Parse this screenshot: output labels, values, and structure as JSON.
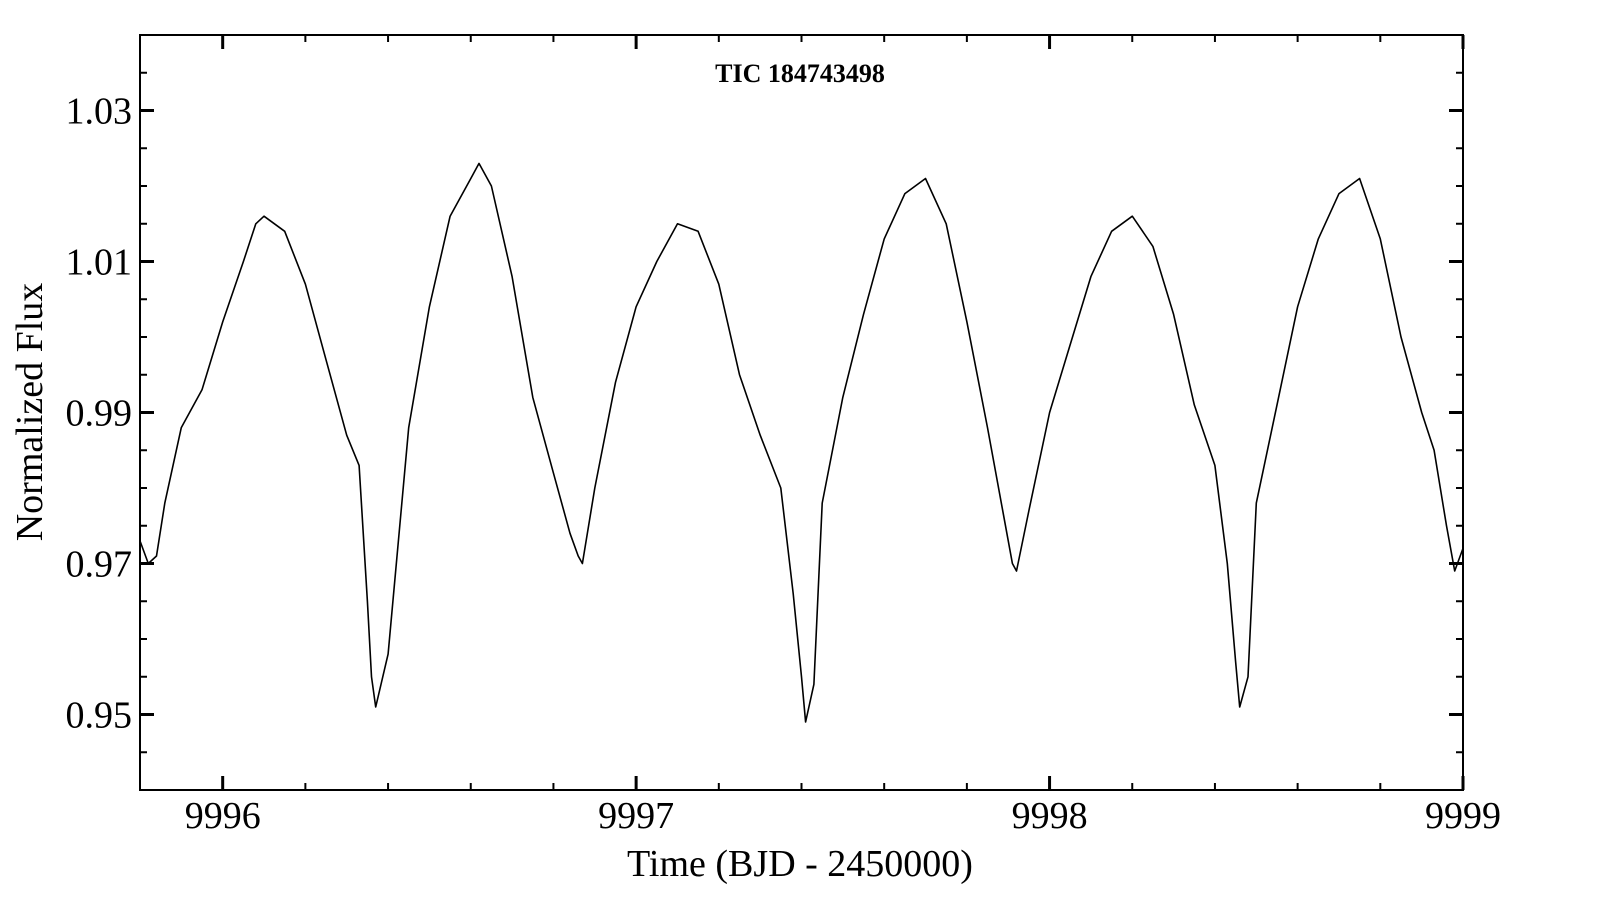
{
  "chart_data": {
    "type": "line",
    "title": "TIC 184743498",
    "xlabel": "Time (BJD - 2450000)",
    "ylabel": "Normalized Flux",
    "xlim": [
      9995.8,
      9999.0
    ],
    "ylim": [
      0.94,
      1.04
    ],
    "x_ticks": [
      9996,
      9997,
      9998,
      9999
    ],
    "x_tick_labels": [
      "9996",
      "9997",
      "9998",
      "9999"
    ],
    "y_ticks": [
      0.95,
      0.97,
      0.99,
      1.01,
      1.03
    ],
    "y_tick_labels": [
      "0.95",
      "0.97",
      "0.99",
      "1.01",
      "1.03"
    ],
    "grid": false,
    "legend": "none",
    "line_color": "#000000",
    "series": [
      {
        "x": [
          9995.8,
          9995.82,
          9995.84,
          9995.86,
          9995.9,
          9995.95,
          9996.0,
          9996.05,
          9996.08,
          9996.1,
          9996.15,
          9996.2,
          9996.25,
          9996.3,
          9996.33,
          9996.35,
          9996.36,
          9996.37,
          9996.4,
          9996.45,
          9996.5,
          9996.55,
          9996.6,
          9996.62,
          9996.65,
          9996.7,
          9996.75,
          9996.8,
          9996.84,
          9996.86,
          9996.87,
          9996.9,
          9996.95,
          9997.0,
          9997.05,
          9997.1,
          9997.15,
          9997.2,
          9997.25,
          9997.3,
          9997.35,
          9997.38,
          9997.4,
          9997.41,
          9997.43,
          9997.45,
          9997.5,
          9997.55,
          9997.6,
          9997.65,
          9997.7,
          9997.75,
          9997.8,
          9997.85,
          9997.89,
          9997.91,
          9997.92,
          9997.95,
          9998.0,
          9998.05,
          9998.1,
          9998.15,
          9998.2,
          9998.25,
          9998.3,
          9998.35,
          9998.4,
          9998.43,
          9998.45,
          9998.46,
          9998.48,
          9998.5,
          9998.55,
          9998.6,
          9998.65,
          9998.7,
          9998.75,
          9998.8,
          9998.85,
          9998.9,
          9998.93,
          9998.96,
          9998.98,
          9999.0
        ],
        "y": [
          0.973,
          0.97,
          0.971,
          0.978,
          0.988,
          0.993,
          1.002,
          1.01,
          1.015,
          1.016,
          1.014,
          1.007,
          0.997,
          0.987,
          0.983,
          0.965,
          0.955,
          0.951,
          0.958,
          0.988,
          1.004,
          1.016,
          1.021,
          1.023,
          1.02,
          1.008,
          0.992,
          0.982,
          0.974,
          0.971,
          0.97,
          0.98,
          0.994,
          1.004,
          1.01,
          1.015,
          1.014,
          1.007,
          0.995,
          0.987,
          0.98,
          0.966,
          0.955,
          0.949,
          0.954,
          0.978,
          0.992,
          1.003,
          1.013,
          1.019,
          1.021,
          1.015,
          1.002,
          0.988,
          0.976,
          0.97,
          0.969,
          0.977,
          0.99,
          0.999,
          1.008,
          1.014,
          1.016,
          1.012,
          1.003,
          0.991,
          0.983,
          0.97,
          0.957,
          0.951,
          0.955,
          0.978,
          0.991,
          1.004,
          1.013,
          1.019,
          1.021,
          1.013,
          1.0,
          0.99,
          0.985,
          0.975,
          0.969,
          0.972
        ]
      }
    ]
  }
}
